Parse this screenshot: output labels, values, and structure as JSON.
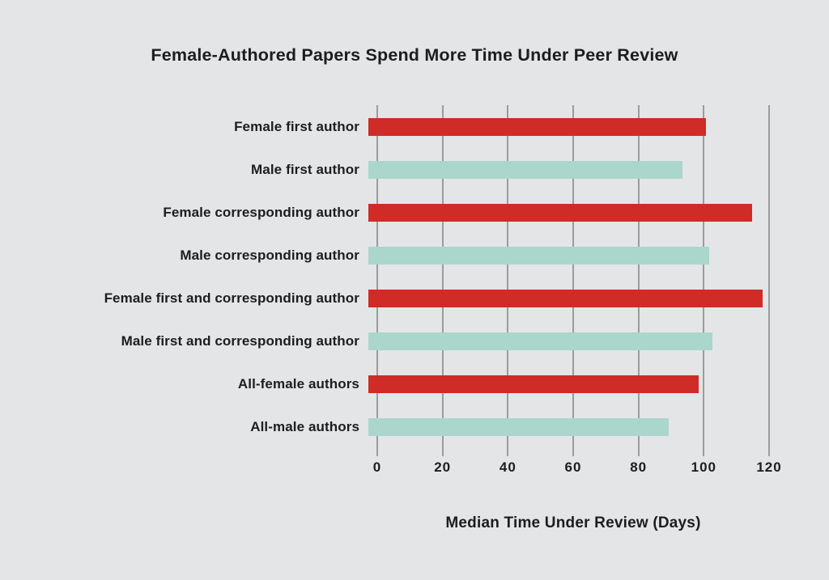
{
  "chart_data": {
    "type": "bar",
    "orientation": "horizontal",
    "title": "Female-Authored Papers Spend More Time Under Peer Review",
    "xlabel": "Median Time Under Review (Days)",
    "xlim": [
      0,
      120
    ],
    "xticks": [
      0,
      20,
      40,
      60,
      80,
      100,
      120
    ],
    "grid": true,
    "legend": false,
    "categories": [
      "Female first author",
      "Male first author",
      "Female corresponding author",
      "Male corresponding author",
      "Female first and corresponding author",
      "Male first and corresponding author",
      "All-female authors",
      "All-male authors"
    ],
    "values": [
      101,
      94,
      115,
      102,
      118,
      103,
      99,
      90
    ],
    "groups": [
      "female",
      "male",
      "female",
      "male",
      "female",
      "male",
      "female",
      "male"
    ],
    "colors": {
      "female": "#cf2b27",
      "male": "#abd6cc"
    },
    "background_color": "#e4e5e6",
    "gridline_color": "#9b9c9c",
    "text_color": "#1d1d1d"
  }
}
